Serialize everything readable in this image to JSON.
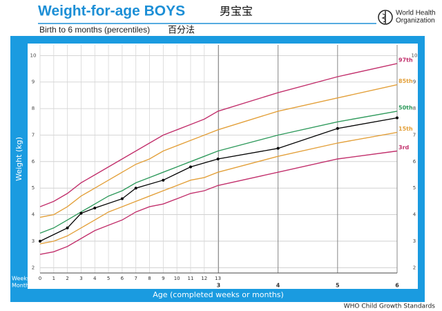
{
  "chart_data": {
    "type": "line",
    "title": "Weight-for-age BOYS",
    "title_cn": "男宝宝",
    "subtitle": "Birth to 6 months (percentiles)",
    "subtitle_cn": "百分法",
    "organization": [
      "World Health",
      "Organization"
    ],
    "ylabel": "Weight (kg)",
    "xlabel": "Age (completed weeks or months)",
    "weeks_label": "Weeks",
    "months_label": "Months",
    "source": "WHO Child Growth Standards",
    "x": [
      0,
      1,
      2,
      3,
      4,
      5,
      6,
      7,
      8,
      9,
      10,
      11,
      12,
      13,
      17.39,
      21.74,
      26.09
    ],
    "series": [
      {
        "name": "97th",
        "color": "#c2306c",
        "values": [
          4.3,
          4.5,
          4.8,
          5.2,
          5.5,
          5.8,
          6.1,
          6.4,
          6.7,
          7.0,
          7.2,
          7.4,
          7.6,
          7.9,
          8.6,
          9.2,
          9.7
        ]
      },
      {
        "name": "85th",
        "color": "#e3a03a",
        "values": [
          3.9,
          4.0,
          4.3,
          4.7,
          5.0,
          5.3,
          5.6,
          5.9,
          6.1,
          6.4,
          6.6,
          6.8,
          7.0,
          7.2,
          7.9,
          8.4,
          8.9
        ]
      },
      {
        "name": "50th",
        "color": "#2f9a5c",
        "values": [
          3.3,
          3.5,
          3.8,
          4.1,
          4.4,
          4.7,
          4.9,
          5.2,
          5.4,
          5.6,
          5.8,
          6.0,
          6.2,
          6.4,
          7.0,
          7.5,
          7.9
        ]
      },
      {
        "name": "15th",
        "color": "#e3a03a",
        "values": [
          2.9,
          3.0,
          3.2,
          3.5,
          3.8,
          4.1,
          4.3,
          4.5,
          4.7,
          4.9,
          5.1,
          5.3,
          5.4,
          5.6,
          6.2,
          6.7,
          7.1
        ]
      },
      {
        "name": "3rd",
        "color": "#c2306c",
        "values": [
          2.5,
          2.6,
          2.8,
          3.1,
          3.4,
          3.6,
          3.8,
          4.1,
          4.3,
          4.4,
          4.6,
          4.8,
          4.9,
          5.1,
          5.6,
          6.1,
          6.4
        ]
      }
    ],
    "measurements": {
      "color": "#000000",
      "x": [
        0,
        2,
        3,
        4,
        6,
        7,
        9,
        11,
        13,
        17.39,
        21.74,
        26.09
      ],
      "values": [
        3.0,
        3.5,
        4.05,
        4.25,
        4.6,
        5.0,
        5.3,
        5.8,
        6.1,
        6.5,
        7.25,
        7.65
      ]
    },
    "xlim": [
      0,
      26.09
    ],
    "xticks": [
      0,
      1,
      2,
      3,
      4,
      5,
      6,
      7,
      8,
      9,
      10,
      11,
      12,
      13
    ],
    "month_ticks": [
      {
        "value": 13.04,
        "label": "3"
      },
      {
        "value": 17.39,
        "label": "4"
      },
      {
        "value": 21.74,
        "label": "5"
      },
      {
        "value": 26.09,
        "label": "6"
      }
    ],
    "ylim": [
      1.8,
      10.4
    ],
    "yticks": [
      2,
      3,
      4,
      5,
      6,
      7,
      8,
      9,
      10
    ],
    "grid": true
  }
}
